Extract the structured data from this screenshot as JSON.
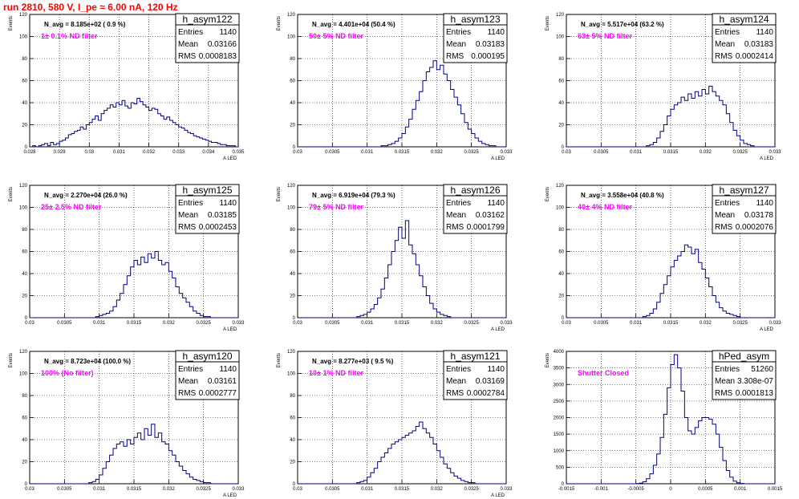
{
  "page": {
    "title": "run 2810,   580 V, I_pe ≈ 6.00 nA, 120 Hz"
  },
  "stat_labels": {
    "entries": "Entries",
    "mean": "Mean",
    "rms": "RMS"
  },
  "colors": {
    "hist_line": "#000080",
    "annotation": "#ff00ff",
    "title": "#ff0000",
    "grid": "#000000"
  },
  "chart_data": [
    {
      "type": "bar",
      "name": "h_asym122",
      "navg_text": "N_avg = 8.185e+02 ( 0.9 %)",
      "filter_text": "1± 0.1% ND filter",
      "stats": {
        "entries": "1140",
        "mean": "0.03166",
        "rms": "0.0008183"
      },
      "xlabel": "A_LED",
      "ylabel": "Events",
      "xlim": [
        0.028,
        0.035
      ],
      "ylim": [
        0,
        120
      ],
      "x_ticks": [
        "0.028",
        "0.029",
        "0.03",
        "0.031",
        "0.032",
        "0.033",
        "0.034",
        "0.035"
      ],
      "y_ticks": [
        "0",
        "20",
        "40",
        "60",
        "80",
        "100",
        "120"
      ],
      "grid": true,
      "values": [
        0,
        1,
        0,
        1,
        2,
        3,
        1,
        4,
        2,
        3,
        5,
        6,
        8,
        11,
        12,
        14,
        15,
        18,
        16,
        20,
        22,
        25,
        28,
        24,
        30,
        33,
        35,
        38,
        36,
        40,
        38,
        42,
        37,
        35,
        40,
        39,
        44,
        41,
        38,
        36,
        33,
        35,
        34,
        30,
        28,
        25,
        27,
        24,
        22,
        20,
        18,
        17,
        15,
        13,
        12,
        10,
        9,
        8,
        7,
        6,
        5,
        4,
        4,
        3,
        2,
        2,
        1,
        1,
        1,
        0
      ]
    },
    {
      "type": "bar",
      "name": "h_asym123",
      "navg_text": "N_avg = 4.401e+04 (50.4 %)",
      "filter_text": "50± 5% ND filter",
      "stats": {
        "entries": "1140",
        "mean": "0.03183",
        "rms": "0.000195"
      },
      "xlabel": "A_LED",
      "ylabel": "Events",
      "xlim": [
        0.03,
        0.033
      ],
      "ylim": [
        0,
        120
      ],
      "x_ticks": [
        "0.03",
        "0.0305",
        "0.031",
        "0.0315",
        "0.032",
        "0.0325",
        "0.033"
      ],
      "y_ticks": [
        "0",
        "20",
        "40",
        "60",
        "80",
        "100",
        "120"
      ],
      "grid": true,
      "values": [
        0,
        0,
        0,
        0,
        0,
        0,
        0,
        0,
        0,
        0,
        0,
        0,
        0,
        0,
        0,
        0,
        0,
        0,
        0,
        0,
        0,
        0,
        0,
        0,
        1,
        1,
        2,
        3,
        5,
        8,
        12,
        18,
        25,
        34,
        42,
        50,
        60,
        68,
        72,
        78,
        70,
        74,
        66,
        60,
        52,
        45,
        38,
        30,
        22,
        16,
        12,
        8,
        5,
        3,
        2,
        1,
        1,
        0,
        0,
        0
      ]
    },
    {
      "type": "bar",
      "name": "h_asym124",
      "navg_text": "N_avg = 5.517e+04 (63.2 %)",
      "filter_text": "63± 5% ND filter",
      "stats": {
        "entries": "1140",
        "mean": "0.03183",
        "rms": "0.0002414"
      },
      "xlabel": "A_LED",
      "ylabel": "Events",
      "xlim": [
        0.03,
        0.033
      ],
      "ylim": [
        0,
        120
      ],
      "x_ticks": [
        "0.03",
        "0.0305",
        "0.031",
        "0.0315",
        "0.032",
        "0.0325",
        "0.033"
      ],
      "y_ticks": [
        "0",
        "20",
        "40",
        "60",
        "80",
        "100",
        "120"
      ],
      "grid": true,
      "values": [
        0,
        0,
        0,
        0,
        0,
        0,
        0,
        0,
        0,
        0,
        0,
        0,
        0,
        0,
        0,
        0,
        0,
        0,
        0,
        0,
        0,
        0,
        0,
        1,
        2,
        4,
        8,
        14,
        20,
        28,
        34,
        38,
        40,
        45,
        42,
        48,
        44,
        50,
        46,
        52,
        48,
        55,
        50,
        46,
        42,
        38,
        30,
        22,
        15,
        10,
        6,
        3,
        2,
        1,
        0,
        0,
        0,
        0,
        0,
        0
      ]
    },
    {
      "type": "bar",
      "name": "h_asym125",
      "navg_text": "N_avg = 2.270e+04 (26.0 %)",
      "filter_text": "25± 2.5% ND filter",
      "stats": {
        "entries": "1140",
        "mean": "0.03185",
        "rms": "0.0002453"
      },
      "xlabel": "A_LED",
      "ylabel": "Events",
      "xlim": [
        0.03,
        0.033
      ],
      "ylim": [
        0,
        120
      ],
      "x_ticks": [
        "0.03",
        "0.0305",
        "0.031",
        "0.0315",
        "0.032",
        "0.0325",
        "0.033"
      ],
      "y_ticks": [
        "0",
        "20",
        "40",
        "60",
        "80",
        "100",
        "120"
      ],
      "grid": true,
      "values": [
        0,
        0,
        0,
        0,
        0,
        0,
        0,
        0,
        0,
        0,
        0,
        0,
        0,
        0,
        0,
        0,
        0,
        0,
        0,
        1,
        2,
        3,
        4,
        6,
        10,
        16,
        22,
        30,
        38,
        46,
        52,
        48,
        55,
        50,
        58,
        54,
        60,
        52,
        48,
        50,
        42,
        36,
        28,
        22,
        18,
        14,
        10,
        6,
        4,
        2,
        1,
        1,
        0,
        0,
        0,
        0,
        0,
        0,
        0,
        0
      ]
    },
    {
      "type": "bar",
      "name": "h_asym126",
      "navg_text": "N_avg = 6.919e+04 (79.3 %)",
      "filter_text": "79± 5% ND filter",
      "stats": {
        "entries": "1140",
        "mean": "0.03162",
        "rms": "0.0001799"
      },
      "xlabel": "A_LED",
      "ylabel": "Events",
      "xlim": [
        0.03,
        0.033
      ],
      "ylim": [
        0,
        120
      ],
      "x_ticks": [
        "0.03",
        "0.0305",
        "0.031",
        "0.0315",
        "0.032",
        "0.0325",
        "0.033"
      ],
      "y_ticks": [
        "0",
        "20",
        "40",
        "60",
        "80",
        "100",
        "120"
      ],
      "grid": true,
      "values": [
        0,
        0,
        0,
        0,
        0,
        0,
        0,
        0,
        0,
        0,
        0,
        0,
        0,
        0,
        0,
        0,
        0,
        1,
        2,
        3,
        5,
        8,
        12,
        18,
        26,
        36,
        48,
        60,
        70,
        82,
        72,
        88,
        66,
        58,
        48,
        38,
        28,
        20,
        13,
        8,
        5,
        3,
        2,
        1,
        0,
        0,
        0,
        0,
        0,
        0,
        0,
        0,
        0,
        0,
        0,
        0,
        0,
        0,
        0,
        0
      ]
    },
    {
      "type": "bar",
      "name": "h_asym127",
      "navg_text": "N_avg = 3.558e+04 (40.8 %)",
      "filter_text": "40± 4% ND filter",
      "stats": {
        "entries": "1140",
        "mean": "0.03178",
        "rms": "0.0002076"
      },
      "xlabel": "A_LED",
      "ylabel": "Events",
      "xlim": [
        0.03,
        0.033
      ],
      "ylim": [
        0,
        120
      ],
      "x_ticks": [
        "0.03",
        "0.0305",
        "0.031",
        "0.0315",
        "0.032",
        "0.0325",
        "0.033"
      ],
      "y_ticks": [
        "0",
        "20",
        "40",
        "60",
        "80",
        "100",
        "120"
      ],
      "grid": true,
      "values": [
        0,
        0,
        0,
        0,
        0,
        0,
        0,
        0,
        0,
        0,
        0,
        0,
        0,
        0,
        0,
        0,
        0,
        0,
        0,
        0,
        0,
        0,
        1,
        2,
        4,
        8,
        14,
        22,
        30,
        38,
        46,
        52,
        56,
        60,
        66,
        64,
        58,
        62,
        50,
        44,
        36,
        28,
        20,
        14,
        9,
        6,
        4,
        3,
        2,
        1,
        0,
        0,
        0,
        0,
        0,
        0,
        0,
        0,
        0,
        0
      ]
    },
    {
      "type": "bar",
      "name": "h_asym120",
      "navg_text": "N_avg = 8.723e+04 (100.0 %)",
      "filter_text": "100% (No filter)",
      "stats": {
        "entries": "1140",
        "mean": "0.03161",
        "rms": "0.0002777"
      },
      "xlabel": "A_LED",
      "ylabel": "Events",
      "xlim": [
        0.03,
        0.033
      ],
      "ylim": [
        0,
        120
      ],
      "x_ticks": [
        "0.03",
        "0.0305",
        "0.031",
        "0.0315",
        "0.032",
        "0.0325",
        "0.033"
      ],
      "y_ticks": [
        "0",
        "20",
        "40",
        "60",
        "80",
        "100",
        "120"
      ],
      "grid": true,
      "values": [
        0,
        0,
        0,
        0,
        0,
        0,
        0,
        0,
        0,
        0,
        0,
        0,
        0,
        0,
        0,
        0,
        0,
        1,
        2,
        4,
        8,
        14,
        20,
        26,
        32,
        36,
        38,
        34,
        40,
        36,
        42,
        46,
        40,
        50,
        44,
        54,
        42,
        46,
        38,
        36,
        30,
        26,
        20,
        16,
        12,
        9,
        6,
        4,
        3,
        2,
        1,
        1,
        0,
        0,
        0,
        0,
        0,
        0,
        0,
        0
      ]
    },
    {
      "type": "bar",
      "name": "h_asym121",
      "navg_text": "N_avg = 8.277e+03 ( 9.5 %)",
      "filter_text": "10± 1% ND filter",
      "stats": {
        "entries": "1140",
        "mean": "0.03169",
        "rms": "0.0002784"
      },
      "xlabel": "A_LED",
      "ylabel": "Events",
      "xlim": [
        0.03,
        0.033
      ],
      "ylim": [
        0,
        120
      ],
      "x_ticks": [
        "0.03",
        "0.0305",
        "0.031",
        "0.0315",
        "0.032",
        "0.0325",
        "0.033"
      ],
      "y_ticks": [
        "0",
        "20",
        "40",
        "60",
        "80",
        "100",
        "120"
      ],
      "grid": true,
      "values": [
        0,
        0,
        0,
        0,
        0,
        0,
        0,
        0,
        0,
        0,
        0,
        0,
        0,
        0,
        0,
        0,
        0,
        1,
        2,
        3,
        6,
        10,
        14,
        20,
        24,
        28,
        32,
        36,
        38,
        40,
        42,
        44,
        46,
        48,
        52,
        56,
        50,
        46,
        42,
        36,
        30,
        24,
        18,
        14,
        10,
        7,
        5,
        3,
        2,
        1,
        1,
        0,
        0,
        0,
        0,
        0,
        0,
        0,
        0,
        0
      ]
    },
    {
      "type": "bar",
      "name": "hPed_asym",
      "navg_text": "",
      "filter_text": "Shutter Closed",
      "stats": {
        "entries": "51260",
        "mean": "3.308e-07",
        "rms": "0.0001813"
      },
      "xlabel": "",
      "ylabel": "Events",
      "xlim": [
        -0.0015,
        0.0015
      ],
      "ylim": [
        0,
        4000
      ],
      "x_ticks": [
        "-0.0015",
        "-0.001",
        "-0.0005",
        "0",
        "0.0005",
        "0.001",
        "0.0015"
      ],
      "y_ticks": [
        "0",
        "500",
        "1000",
        "1500",
        "2000",
        "2500",
        "3000",
        "3500",
        "4000"
      ],
      "grid": true,
      "values": [
        0,
        0,
        0,
        0,
        0,
        0,
        0,
        0,
        0,
        0,
        0,
        0,
        0,
        0,
        0,
        0,
        0,
        0,
        0,
        0,
        5,
        20,
        60,
        150,
        300,
        560,
        900,
        1400,
        2100,
        2900,
        3600,
        3900,
        3500,
        2800,
        2000,
        1600,
        1500,
        1700,
        1900,
        2000,
        2000,
        1950,
        1800,
        1500,
        1100,
        700,
        400,
        200,
        80,
        30,
        10,
        0,
        0,
        0,
        0,
        0,
        0,
        0,
        0,
        0
      ]
    }
  ]
}
